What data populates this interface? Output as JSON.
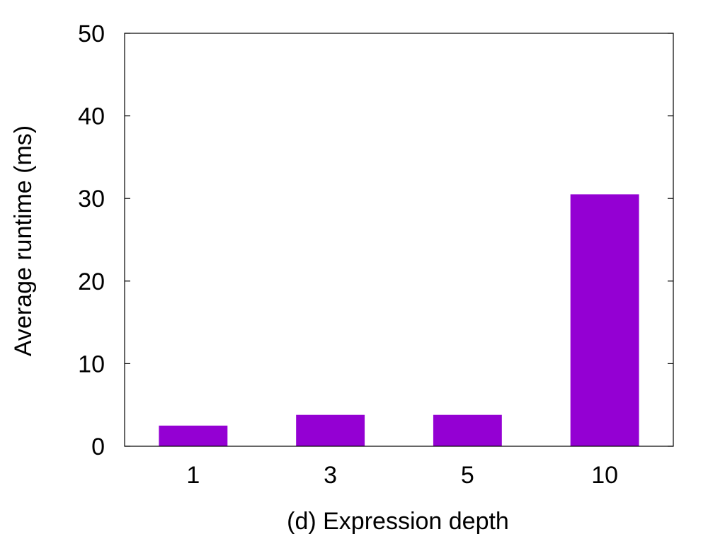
{
  "chart_data": {
    "type": "bar",
    "title": "",
    "xlabel": "(d) Expression depth",
    "ylabel": "Average runtime (ms)",
    "categories": [
      "1",
      "3",
      "5",
      "10"
    ],
    "values": [
      2.5,
      3.8,
      3.8,
      30.5
    ],
    "ylim": [
      0,
      50
    ],
    "yticks": [
      0,
      10,
      20,
      30,
      40,
      50
    ],
    "grid": false,
    "legend": "none",
    "bar_color": "#9400D3",
    "axis_color": "#000000"
  }
}
